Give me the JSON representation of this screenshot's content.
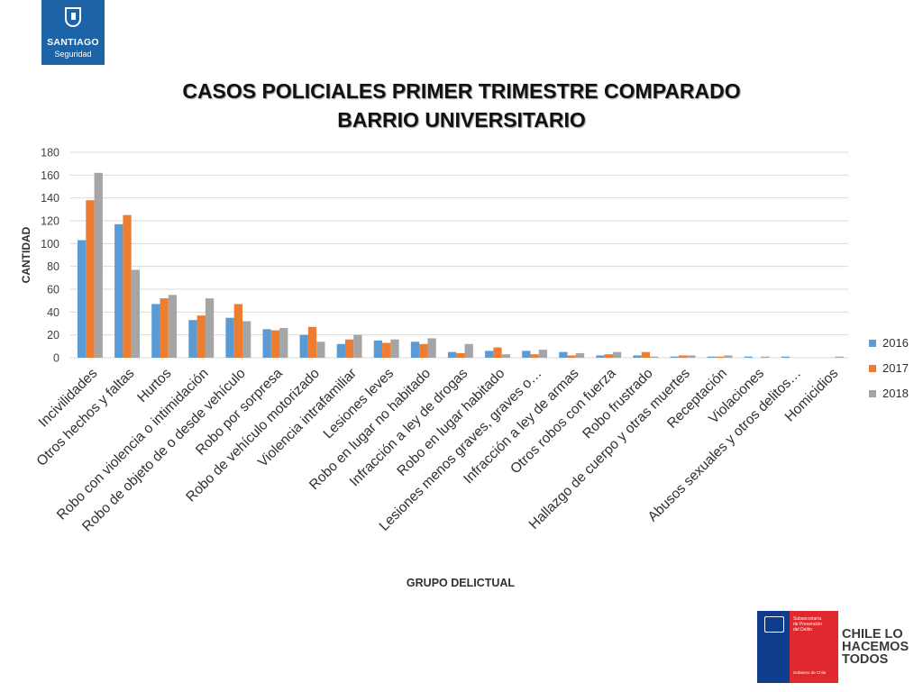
{
  "header": {
    "logo_name": "SANTIAGO",
    "logo_sub": "Seguridad"
  },
  "footer": {
    "gov_text": "Subsecretaría\nde Prevención\ndel Delito",
    "gov_sub": "Gobierno de Chile",
    "slogan": "CHILE LO\nHACEMOS\nTODOS"
  },
  "chart_data": {
    "type": "bar",
    "title": "CASOS POLICIALES PRIMER TRIMESTRE COMPARADO",
    "subtitle": "BARRIO UNIVERSITARIO",
    "xlabel": "GRUPO DELICTUAL",
    "ylabel": "CANTIDAD",
    "ylim": [
      0,
      180
    ],
    "yticks": [
      0,
      20,
      40,
      60,
      80,
      100,
      120,
      140,
      160,
      180
    ],
    "grid": true,
    "legend_position": "right",
    "categories": [
      "Incivilidades",
      "Otros hechos y faltas",
      "Hurtos",
      "Robo con violencia o intimidación",
      "Robo de objeto de o desde vehículo",
      "Robo por sorpresa",
      "Robo de vehículo motorizado",
      "Violencia intrafamiliar",
      "Lesiones leves",
      "Robo en lugar no habitado",
      "Infracción a ley de drogas",
      "Robo en lugar habitado",
      "Lesiones menos graves, graves o…",
      "Infracción a ley de armas",
      "Otros robos con fuerza",
      "Robo frustrado",
      "Hallazgo de cuerpo y otras muertes",
      "Receptación",
      "Violaciones",
      "Abusos sexuales y otros delitos…",
      "Homicidios"
    ],
    "series": [
      {
        "name": "2016",
        "color": "#5b9bd5",
        "values": [
          103,
          117,
          47,
          33,
          35,
          25,
          20,
          12,
          15,
          14,
          5,
          6,
          6,
          5,
          2,
          2,
          1,
          1,
          1,
          1,
          0
        ]
      },
      {
        "name": "2017",
        "color": "#ed7d31",
        "values": [
          138,
          125,
          52,
          37,
          47,
          24,
          27,
          16,
          13,
          12,
          4,
          9,
          3,
          2,
          3,
          5,
          2,
          1,
          0,
          0,
          0
        ]
      },
      {
        "name": "2018",
        "color": "#a5a5a5",
        "values": [
          162,
          77,
          55,
          52,
          32,
          26,
          14,
          20,
          16,
          17,
          12,
          3,
          7,
          4,
          5,
          1,
          2,
          2,
          1,
          0,
          1
        ]
      }
    ]
  }
}
